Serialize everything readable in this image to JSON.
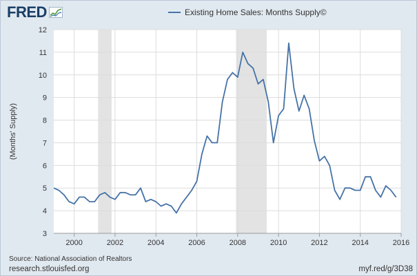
{
  "logo": {
    "text": "FRED",
    "mark": "chart-graph-icon"
  },
  "legend": {
    "label": "Existing Home Sales: Months Supply©",
    "color": "#4572a7"
  },
  "footer": {
    "source": "Source: National Association of Realtors",
    "left_link": "research.stlouisfed.org",
    "right_link": "myf.red/g/3D38"
  },
  "chart_data": {
    "type": "line",
    "title": "",
    "ylabel": "(Months' Supply)",
    "xlabel": "",
    "xlim": [
      1999.0,
      2016.0
    ],
    "ylim": [
      3,
      12
    ],
    "yticks": [
      3,
      4,
      5,
      6,
      7,
      8,
      9,
      10,
      11,
      12
    ],
    "xticks": [
      2000,
      2002,
      2004,
      2006,
      2008,
      2010,
      2012,
      2014,
      2016
    ],
    "grid": true,
    "legend_position": "top",
    "recessions": [
      [
        2001.17,
        2001.83
      ],
      [
        2007.92,
        2009.42
      ]
    ],
    "series": [
      {
        "name": "Existing Home Sales: Months Supply©",
        "color": "#4572a7",
        "x": [
          1999.0,
          1999.25,
          1999.5,
          1999.75,
          2000.0,
          2000.25,
          2000.5,
          2000.75,
          2001.0,
          2001.25,
          2001.5,
          2001.75,
          2002.0,
          2002.25,
          2002.5,
          2002.75,
          2003.0,
          2003.25,
          2003.5,
          2003.75,
          2004.0,
          2004.25,
          2004.5,
          2004.75,
          2005.0,
          2005.25,
          2005.5,
          2005.75,
          2006.0,
          2006.25,
          2006.5,
          2006.75,
          2007.0,
          2007.25,
          2007.5,
          2007.75,
          2008.0,
          2008.25,
          2008.5,
          2008.75,
          2009.0,
          2009.25,
          2009.5,
          2009.75,
          2010.0,
          2010.25,
          2010.5,
          2010.75,
          2011.0,
          2011.25,
          2011.5,
          2011.75,
          2012.0,
          2012.25,
          2012.5,
          2012.75,
          2013.0,
          2013.25,
          2013.5,
          2013.75,
          2014.0,
          2014.25,
          2014.5,
          2014.75,
          2015.0,
          2015.25,
          2015.5,
          2015.75
        ],
        "values": [
          5.0,
          4.9,
          4.7,
          4.4,
          4.3,
          4.6,
          4.6,
          4.4,
          4.4,
          4.7,
          4.8,
          4.6,
          4.5,
          4.8,
          4.8,
          4.7,
          4.7,
          5.0,
          4.4,
          4.5,
          4.4,
          4.2,
          4.3,
          4.2,
          3.9,
          4.3,
          4.6,
          4.9,
          5.3,
          6.5,
          7.3,
          7.0,
          7.0,
          8.8,
          9.8,
          10.1,
          9.9,
          11.0,
          10.5,
          10.3,
          9.6,
          9.8,
          8.8,
          7.0,
          8.2,
          8.5,
          11.4,
          9.4,
          8.4,
          9.1,
          8.5,
          7.1,
          6.2,
          6.4,
          6.0,
          4.9,
          4.5,
          5.0,
          5.0,
          4.9,
          4.9,
          5.5,
          5.5,
          4.9,
          4.6,
          5.1,
          4.9,
          4.6
        ]
      }
    ]
  }
}
